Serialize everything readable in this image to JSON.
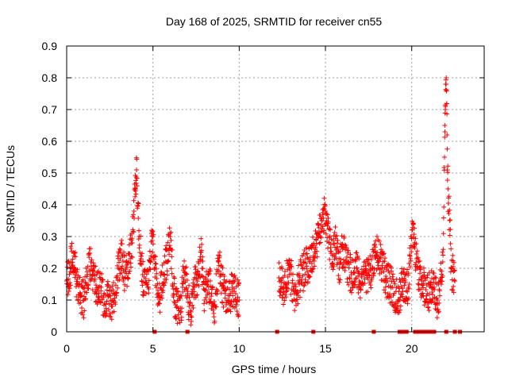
{
  "chart_data": {
    "type": "scatter",
    "title": "Day 168 of 2025, SRMTID for receiver cn55",
    "xlabel": "GPS time / hours",
    "ylabel": "SRMTID / TECUs",
    "xlim": [
      0,
      24.2
    ],
    "ylim": [
      0,
      0.9
    ],
    "x_ticks": [
      0,
      5,
      10,
      15,
      20
    ],
    "x_tick_labels": [
      "0",
      "5",
      "10",
      "15",
      "20"
    ],
    "y_ticks": [
      0,
      0.1,
      0.2,
      0.3,
      0.4,
      0.5,
      0.6,
      0.7,
      0.8,
      0.9
    ],
    "y_tick_labels": [
      "0",
      "0.1",
      "0.2",
      "0.3",
      "0.4",
      "0.5",
      "0.6",
      "0.7",
      "0.8",
      "0.9"
    ],
    "grid": true,
    "marker": "+",
    "series": [
      {
        "name": "SRMTID",
        "color": "#ff0000",
        "segments": [
          {
            "x_start": 0.0,
            "x_end": 10.1,
            "points": [
              [
                0.0,
                0.16
              ],
              [
                0.2,
                0.2
              ],
              [
                0.4,
                0.25
              ],
              [
                0.6,
                0.15
              ],
              [
                0.8,
                0.12
              ],
              [
                1.0,
                0.1
              ],
              [
                1.2,
                0.18
              ],
              [
                1.4,
                0.22
              ],
              [
                1.6,
                0.16
              ],
              [
                1.8,
                0.13
              ],
              [
                2.0,
                0.14
              ],
              [
                2.2,
                0.09
              ],
              [
                2.4,
                0.11
              ],
              [
                2.6,
                0.08
              ],
              [
                2.8,
                0.12
              ],
              [
                3.0,
                0.2
              ],
              [
                3.2,
                0.24
              ],
              [
                3.4,
                0.17
              ],
              [
                3.6,
                0.22
              ],
              [
                3.8,
                0.28
              ],
              [
                3.9,
                0.38
              ],
              [
                4.0,
                0.45
              ],
              [
                4.05,
                0.51
              ],
              [
                4.2,
                0.3
              ],
              [
                4.4,
                0.18
              ],
              [
                4.6,
                0.12
              ],
              [
                4.8,
                0.2
              ],
              [
                5.0,
                0.3
              ],
              [
                5.2,
                0.14
              ],
              [
                5.4,
                0.1
              ],
              [
                5.6,
                0.18
              ],
              [
                5.8,
                0.22
              ],
              [
                6.0,
                0.3
              ],
              [
                6.2,
                0.12
              ],
              [
                6.4,
                0.08
              ],
              [
                6.6,
                0.06
              ],
              [
                6.8,
                0.2
              ],
              [
                7.0,
                0.12
              ],
              [
                7.2,
                0.05
              ],
              [
                7.4,
                0.14
              ],
              [
                7.6,
                0.18
              ],
              [
                7.8,
                0.25
              ],
              [
                8.0,
                0.1
              ],
              [
                8.2,
                0.16
              ],
              [
                8.4,
                0.12
              ],
              [
                8.6,
                0.08
              ],
              [
                8.8,
                0.22
              ],
              [
                9.0,
                0.15
              ],
              [
                9.2,
                0.12
              ],
              [
                9.4,
                0.1
              ],
              [
                9.6,
                0.14
              ],
              [
                9.8,
                0.12
              ],
              [
                10.0,
                0.1
              ]
            ]
          },
          {
            "x_start": 12.3,
            "x_end": 22.5,
            "points": [
              [
                12.3,
                0.17
              ],
              [
                12.6,
                0.14
              ],
              [
                12.9,
                0.2
              ],
              [
                13.2,
                0.12
              ],
              [
                13.5,
                0.16
              ],
              [
                13.8,
                0.2
              ],
              [
                14.1,
                0.22
              ],
              [
                14.4,
                0.26
              ],
              [
                14.6,
                0.3
              ],
              [
                14.8,
                0.35
              ],
              [
                15.0,
                0.38
              ],
              [
                15.2,
                0.28
              ],
              [
                15.4,
                0.24
              ],
              [
                15.6,
                0.3
              ],
              [
                15.8,
                0.2
              ],
              [
                16.0,
                0.26
              ],
              [
                16.2,
                0.22
              ],
              [
                16.5,
                0.18
              ],
              [
                16.8,
                0.2
              ],
              [
                17.1,
                0.15
              ],
              [
                17.4,
                0.18
              ],
              [
                17.7,
                0.2
              ],
              [
                18.0,
                0.25
              ],
              [
                18.3,
                0.2
              ],
              [
                18.6,
                0.16
              ],
              [
                18.9,
                0.14
              ],
              [
                19.2,
                0.1
              ],
              [
                19.5,
                0.16
              ],
              [
                19.8,
                0.14
              ],
              [
                20.0,
                0.3
              ],
              [
                20.1,
                0.34
              ],
              [
                20.3,
                0.2
              ],
              [
                20.6,
                0.16
              ],
              [
                20.9,
                0.12
              ],
              [
                21.2,
                0.14
              ],
              [
                21.5,
                0.1
              ],
              [
                21.7,
                0.16
              ],
              [
                21.8,
                0.22
              ],
              [
                21.9,
                0.55
              ],
              [
                21.95,
                0.7
              ],
              [
                22.0,
                0.8
              ],
              [
                22.05,
                0.62
              ],
              [
                22.1,
                0.45
              ],
              [
                22.3,
                0.2
              ],
              [
                22.5,
                0.16
              ]
            ]
          }
        ]
      }
    ],
    "zero_markers_x": [
      5.1,
      7.0,
      12.2,
      14.3,
      17.8,
      19.3,
      19.5,
      19.7,
      20.2,
      20.4,
      20.6,
      20.8,
      21.0,
      21.2,
      21.3,
      22.0,
      22.5,
      22.8
    ]
  }
}
